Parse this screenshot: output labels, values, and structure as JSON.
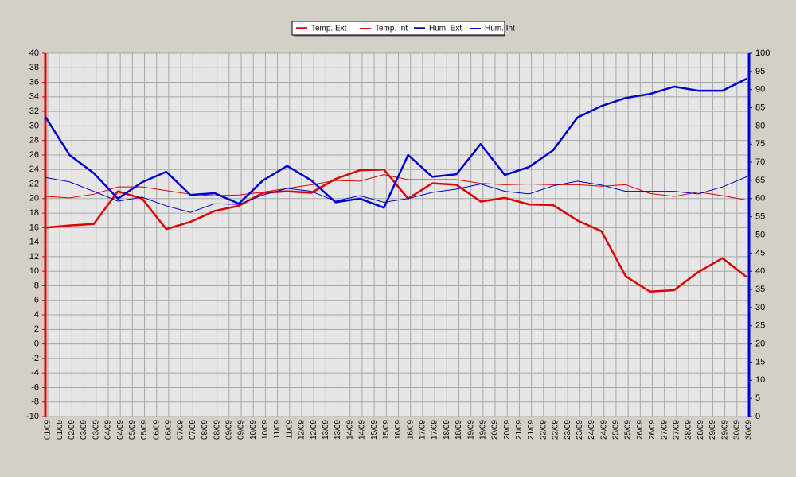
{
  "chart_data": {
    "type": "line",
    "xticks": [
      "01/09",
      "01/09",
      "02/09",
      "03/09",
      "03/09",
      "04/09",
      "04/09",
      "05/09",
      "05/09",
      "06/09",
      "06/09",
      "07/09",
      "07/09",
      "08/09",
      "08/09",
      "09/09",
      "09/09",
      "10/09",
      "10/09",
      "11/09",
      "11/09",
      "12/09",
      "12/09",
      "13/09",
      "13/09",
      "14/09",
      "14/09",
      "15/09",
      "15/09",
      "16/09",
      "16/09",
      "17/09",
      "17/09",
      "18/09",
      "18/09",
      "19/09",
      "19/09",
      "20/09",
      "20/09",
      "21/09",
      "21/09",
      "22/09",
      "22/09",
      "23/09",
      "23/09",
      "24/09",
      "24/09",
      "25/09",
      "25/09",
      "26/09",
      "26/09",
      "27/09",
      "27/09",
      "28/09",
      "28/09",
      "29/09",
      "29/09",
      "30/09",
      "30/09"
    ],
    "ylim": [
      -10,
      40
    ],
    "yticks": [
      -10,
      -8,
      -6,
      -4,
      -2,
      0,
      2,
      4,
      6,
      8,
      10,
      12,
      14,
      16,
      18,
      20,
      22,
      24,
      26,
      28,
      30,
      32,
      34,
      36,
      38,
      40
    ],
    "y2lim": [
      0,
      100
    ],
    "y2ticks": [
      0,
      5,
      10,
      15,
      20,
      25,
      30,
      35,
      40,
      45,
      50,
      55,
      60,
      65,
      70,
      75,
      80,
      85,
      90,
      95,
      100
    ],
    "grid": true,
    "legend": "top",
    "series": [
      {
        "name": "Temp. Ext",
        "color": "#e00000",
        "width": 2.5,
        "values": [
          16,
          16.3,
          16.5,
          21,
          20,
          15.8,
          16.8,
          18.3,
          19,
          20.8,
          21,
          20.8,
          22.7,
          23.9,
          24,
          20,
          22.1,
          21.9,
          19.6,
          20.1,
          19.2,
          19.1,
          17,
          15.5,
          9.3,
          7.2,
          7.4,
          9.9,
          11.8,
          9.2
        ]
      },
      {
        "name": "Temp. Int",
        "color": "#e00000",
        "width": 1,
        "values": [
          20.3,
          20.1,
          20.6,
          21.6,
          21.6,
          21.1,
          20.6,
          20.4,
          20.5,
          20.9,
          21.4,
          21.9,
          22.5,
          22.4,
          23.3,
          22.6,
          22.6,
          22.6,
          22.1,
          21.9,
          22,
          21.9,
          21.9,
          21.7,
          21.9,
          20.7,
          20.3,
          20.9,
          20.4,
          19.8
        ]
      },
      {
        "name": "Hum. Ext",
        "color": "#0000cc",
        "width": 2.5,
        "axis": "y2",
        "values": [
          82.5,
          72,
          67,
          60,
          64.5,
          67.4,
          61,
          61.5,
          58.6,
          65,
          69,
          65,
          59,
          60,
          57.5,
          72,
          66,
          66.7,
          75,
          66.5,
          68.7,
          73.3,
          82.3,
          85.5,
          87.7,
          88.8,
          90.8,
          89.7,
          89.7,
          93
        ]
      },
      {
        "name": "Hum. Int",
        "color": "#0000cc",
        "width": 1,
        "axis": "y2",
        "values": [
          65.8,
          64.6,
          62,
          59.3,
          60.4,
          58,
          56.2,
          58.6,
          58.4,
          61,
          62.8,
          62,
          59.3,
          60.8,
          59,
          60,
          61.7,
          62.6,
          64,
          62,
          61.3,
          63.5,
          64.8,
          63.7,
          62,
          62,
          62,
          61.3,
          63.2,
          66
        ]
      }
    ]
  }
}
